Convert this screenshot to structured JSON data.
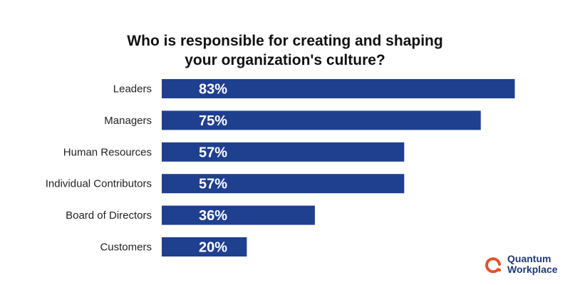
{
  "chart_data": {
    "type": "bar",
    "orientation": "horizontal",
    "title": "Who is responsible for creating and shaping your organization's culture?",
    "title_lines": [
      "Who is responsible for creating and shaping",
      "your organization's culture?"
    ],
    "categories": [
      "Leaders",
      "Managers",
      "Human Resources",
      "Individual Contributors",
      "Board of Directors",
      "Customers"
    ],
    "values": [
      83,
      75,
      57,
      57,
      36,
      20
    ],
    "data_labels": [
      "83%",
      "75%",
      "57%",
      "57%",
      "36%",
      "20%"
    ],
    "xlim": [
      0,
      100
    ],
    "grid": false,
    "bar_color": "#1f3f8f"
  },
  "logo": {
    "line1": "Quantum",
    "line2": "Workplace",
    "brand_color": "#e0532a",
    "text_color": "#1e3a78"
  }
}
